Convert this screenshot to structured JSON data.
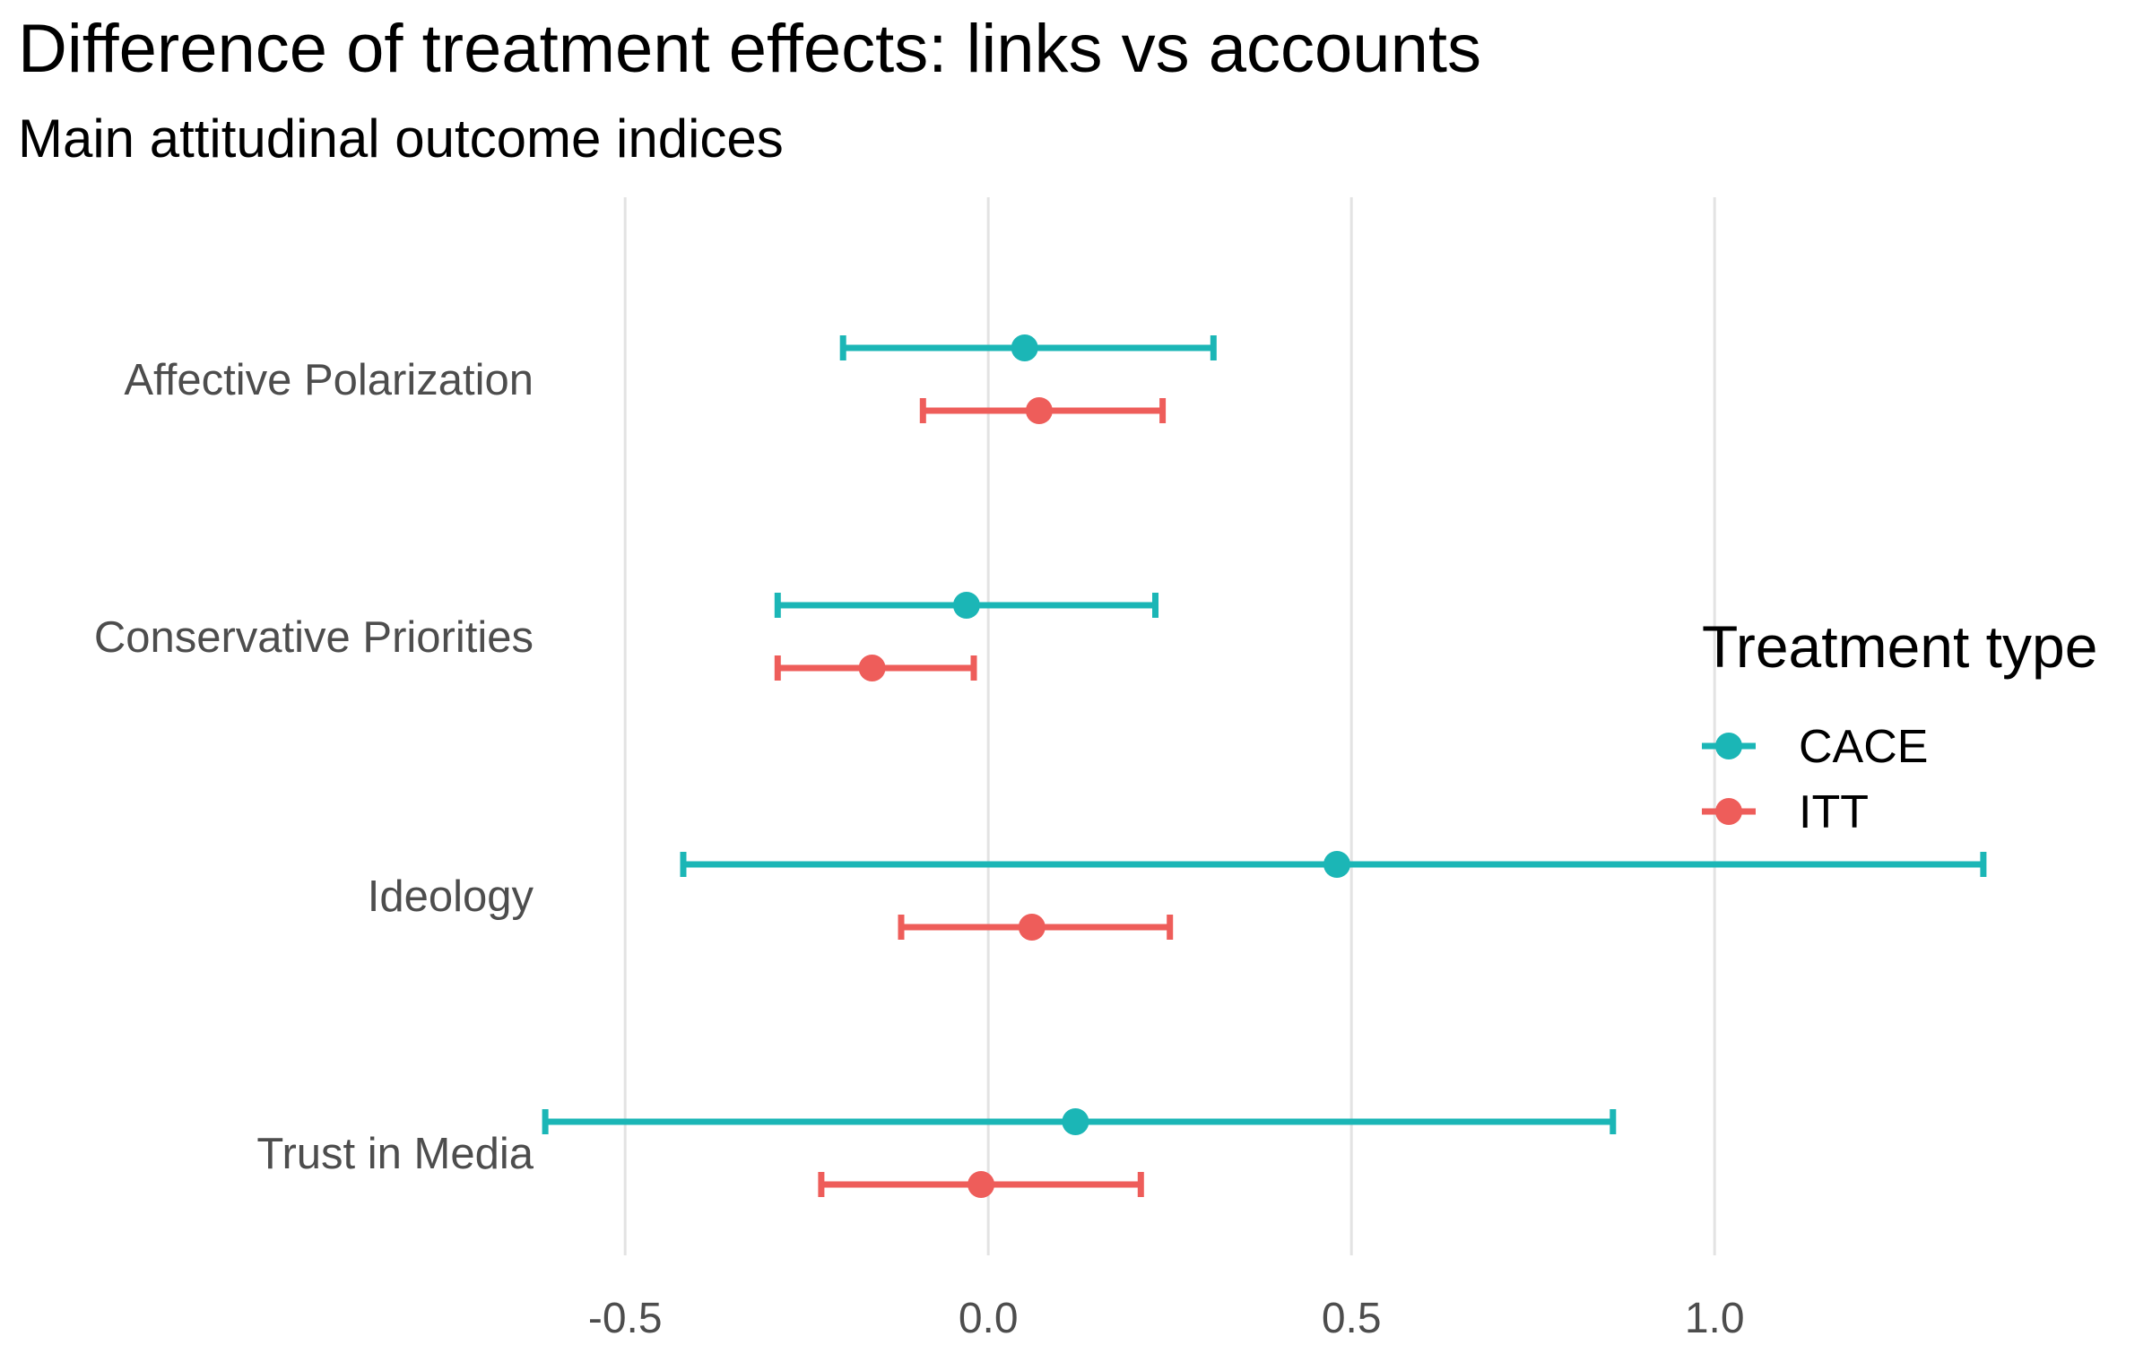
{
  "chart_data": {
    "type": "scatter",
    "title": "Difference of treatment effects: links vs accounts",
    "subtitle": "Main attitudinal outcome indices",
    "xlabel": "",
    "ylabel": "",
    "xlim": [
      -0.62,
      1.38
    ],
    "x_ticks": [
      -0.5,
      0.0,
      0.5,
      1.0
    ],
    "x_tick_labels": [
      "-0.5",
      "0.0",
      "0.5",
      "1.0"
    ],
    "categories": [
      "Affective Polarization",
      "Conservative Priorities",
      "Ideology",
      "Trust in Media"
    ],
    "grid": "vertical major",
    "legend": {
      "title": "Treatment type",
      "position": "right"
    },
    "series": [
      {
        "name": "CACE",
        "color": "#1BB6B6",
        "estimates": [
          0.05,
          -0.03,
          0.48,
          0.12
        ],
        "lower": [
          -0.2,
          -0.29,
          -0.42,
          -0.61
        ],
        "upper": [
          0.31,
          0.23,
          1.37,
          0.86
        ]
      },
      {
        "name": "ITT",
        "color": "#EE5D5A",
        "estimates": [
          0.07,
          -0.16,
          0.06,
          -0.01
        ],
        "lower": [
          -0.09,
          -0.29,
          -0.12,
          -0.23
        ],
        "upper": [
          0.24,
          -0.02,
          0.25,
          0.21
        ]
      }
    ]
  }
}
